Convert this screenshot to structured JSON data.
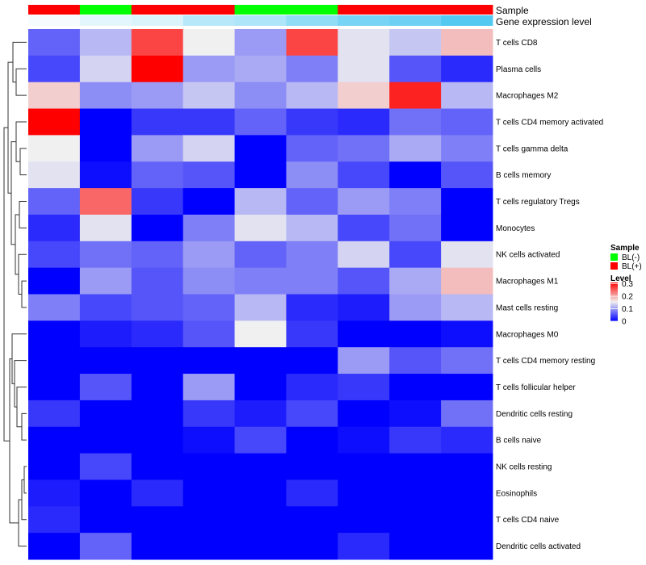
{
  "chart_data": {
    "type": "heatmap",
    "annotation_tracks": [
      {
        "name": "Sample",
        "values": [
          "BL(+)",
          "BL(-)",
          "BL(+)",
          "BL(+)",
          "BL(-)",
          "BL(-)",
          "BL(+)",
          "BL(+)",
          "BL(+)"
        ]
      },
      {
        "name": "Gene expression level",
        "values": [
          0.05,
          0.15,
          0.2,
          0.4,
          0.45,
          0.6,
          0.75,
          0.8,
          0.95
        ]
      }
    ],
    "rows": [
      "T cells CD8",
      "Plasma cells",
      "Macrophages M2",
      "T cells CD4 memory activated",
      "T cells gamma delta",
      "B cells memory",
      "T cells regulatory  Tregs",
      "Monocytes",
      "NK cells activated",
      "Macrophages M1",
      "Mast cells resting",
      "Macrophages M0",
      "T cells CD4 memory resting",
      "T cells follicular helper",
      "Dendritic cells resting",
      "B cells naive",
      "NK cells resting",
      "Eosinophils",
      "T cells CD4 naive",
      "Dendritic cells activated"
    ],
    "values": [
      [
        0.07,
        0.13,
        0.27,
        0.17,
        0.11,
        0.27,
        0.16,
        0.14,
        0.2
      ],
      [
        0.05,
        0.15,
        0.31,
        0.11,
        0.12,
        0.09,
        0.16,
        0.06,
        0.03
      ],
      [
        0.19,
        0.1,
        0.11,
        0.14,
        0.1,
        0.13,
        0.19,
        0.29,
        0.13
      ],
      [
        0.31,
        0.0,
        0.04,
        0.04,
        0.07,
        0.04,
        0.03,
        0.08,
        0.07
      ],
      [
        0.17,
        0.0,
        0.11,
        0.15,
        0.0,
        0.07,
        0.08,
        0.12,
        0.09
      ],
      [
        0.16,
        0.01,
        0.07,
        0.06,
        0.0,
        0.1,
        0.05,
        0.0,
        0.06
      ],
      [
        0.07,
        0.25,
        0.04,
        0.0,
        0.13,
        0.07,
        0.11,
        0.09,
        0.0
      ],
      [
        0.03,
        0.16,
        0.0,
        0.09,
        0.16,
        0.13,
        0.05,
        0.08,
        0.0
      ],
      [
        0.05,
        0.08,
        0.07,
        0.11,
        0.07,
        0.09,
        0.15,
        0.05,
        0.16
      ],
      [
        0.0,
        0.11,
        0.06,
        0.1,
        0.09,
        0.09,
        0.06,
        0.12,
        0.2
      ],
      [
        0.09,
        0.05,
        0.06,
        0.07,
        0.13,
        0.03,
        0.02,
        0.11,
        0.13
      ],
      [
        0.0,
        0.02,
        0.03,
        0.06,
        0.17,
        0.04,
        0.0,
        0.0,
        0.01
      ],
      [
        0.0,
        0.0,
        0.0,
        0.0,
        0.0,
        0.0,
        0.11,
        0.06,
        0.08
      ],
      [
        0.0,
        0.06,
        0.0,
        0.11,
        0.0,
        0.03,
        0.04,
        0.0,
        0.0
      ],
      [
        0.04,
        0.0,
        0.0,
        0.04,
        0.02,
        0.05,
        0.0,
        0.01,
        0.08
      ],
      [
        0.0,
        0.0,
        0.0,
        0.01,
        0.05,
        0.0,
        0.01,
        0.04,
        0.03
      ],
      [
        0.0,
        0.05,
        0.0,
        0.0,
        0.0,
        0.0,
        0.0,
        0.0,
        0.0
      ],
      [
        0.02,
        0.0,
        0.03,
        0.0,
        0.0,
        0.03,
        0.0,
        0.0,
        0.0
      ],
      [
        0.03,
        0.0,
        0.0,
        0.0,
        0.0,
        0.0,
        0.0,
        0.0,
        0.0
      ],
      [
        0.0,
        0.07,
        0.0,
        0.0,
        0.0,
        0.0,
        0.03,
        0.0,
        0.0
      ]
    ],
    "color_scale": {
      "low": "#0000ff",
      "mid": "#f0f0f0",
      "high": "#ff0000",
      "range": [
        0,
        0.31
      ],
      "mid_value": 0.17
    },
    "legend": {
      "placement": "right",
      "sample_title": "Sample",
      "sample_entries": [
        {
          "label": "BL(-)",
          "color": "#00ff00"
        },
        {
          "label": "BL(+)",
          "color": "#ff0000"
        }
      ],
      "level_title": "Level",
      "level_ticks": [
        "0.3",
        "0.2",
        "0.1",
        "0"
      ],
      "level_tick_values": [
        0.3,
        0.2,
        0.1,
        0
      ]
    },
    "sample_colors": {
      "BL(-)": "#00ff00",
      "BL(+)": "#ff0000"
    },
    "expression_colors": {
      "low": "#ffffff",
      "high": "#4ac6f0"
    }
  }
}
